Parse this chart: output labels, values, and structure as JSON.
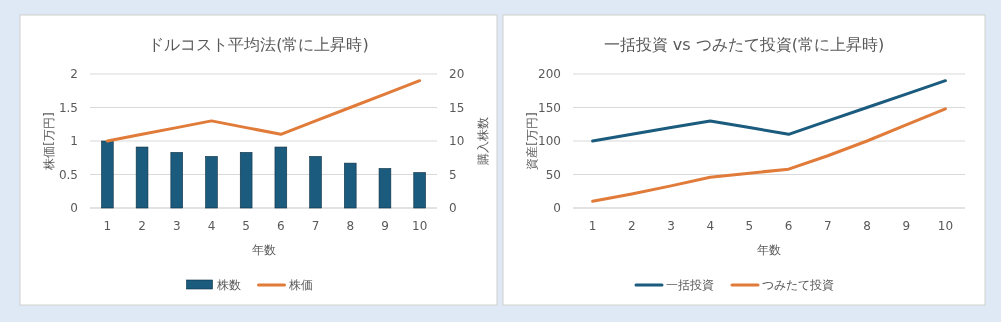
{
  "chart_data": [
    {
      "type": "bar",
      "title": "ドルコスト平均法(常に上昇時)",
      "xlabel": "年数",
      "ylabel": "株価[万円]",
      "y2label": "購入株数",
      "categories": [
        "1",
        "2",
        "3",
        "4",
        "5",
        "6",
        "7",
        "8",
        "9",
        "10"
      ],
      "series": [
        {
          "name": "株数",
          "axis": "y2",
          "color": "#1b5b7e",
          "values": [
            10,
            9.1,
            8.3,
            7.7,
            8.3,
            9.1,
            7.7,
            6.7,
            5.9,
            5.3
          ]
        },
        {
          "name": "株価",
          "type": "line",
          "color": "#e07b39",
          "values": [
            1.0,
            1.1,
            1.2,
            1.3,
            1.2,
            1.1,
            1.3,
            1.5,
            1.7,
            1.9
          ]
        }
      ],
      "ylim": [
        0,
        2
      ],
      "yticks": [
        0,
        0.5,
        1,
        1.5,
        2
      ],
      "y2lim": [
        0,
        20
      ],
      "y2ticks": [
        0,
        5,
        10,
        15,
        20
      ],
      "grid": "y",
      "legend": "bottom"
    },
    {
      "type": "line",
      "title": "一括投資 vs つみたて投資(常に上昇時)",
      "xlabel": "年数",
      "ylabel": "資産[万円]",
      "categories": [
        "1",
        "2",
        "3",
        "4",
        "5",
        "6",
        "7",
        "8",
        "9",
        "10"
      ],
      "series": [
        {
          "name": "一括投資",
          "color": "#1b5b7e",
          "values": [
            100,
            110,
            120,
            130,
            120,
            110,
            130,
            150,
            170,
            190
          ]
        },
        {
          "name": "つみたて投資",
          "color": "#e07b39",
          "values": [
            10,
            21,
            33,
            46,
            52,
            58,
            78,
            100,
            124,
            148
          ]
        }
      ],
      "ylim": [
        0,
        200
      ],
      "yticks": [
        0,
        50,
        100,
        150,
        200
      ],
      "grid": "y",
      "legend": "bottom"
    }
  ]
}
